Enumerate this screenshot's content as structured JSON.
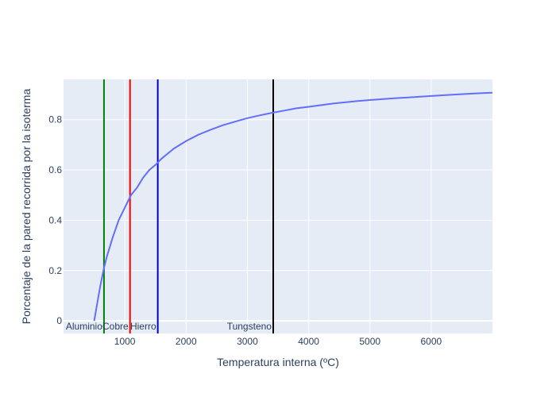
{
  "chart_data": {
    "type": "line",
    "title": "",
    "xlabel": "Temperatura interna (ºC)",
    "ylabel": "Porcentaje de la pared recorrida por la isoterma",
    "xlim": [
      0,
      7000
    ],
    "ylim": [
      -0.05,
      0.96
    ],
    "xticks": [
      1000,
      2000,
      3000,
      4000,
      5000,
      6000
    ],
    "yticks": [
      0,
      0.2,
      0.4,
      0.6,
      0.8
    ],
    "grid": true,
    "series": [
      {
        "color": "#636efa",
        "x": [
          500,
          550,
          600,
          660,
          700,
          800,
          900,
          1000,
          1100,
          1200,
          1300,
          1400,
          1500,
          1600,
          1700,
          1800,
          2000,
          2200,
          2400,
          2600,
          2800,
          3000,
          3200,
          3400,
          3600,
          3800,
          4000,
          4400,
          4800,
          5000,
          5400,
          5800,
          6000,
          6400,
          6800,
          7000
        ],
        "y": [
          0.0,
          0.07,
          0.14,
          0.21,
          0.25,
          0.33,
          0.4,
          0.45,
          0.5,
          0.53,
          0.57,
          0.6,
          0.62,
          0.645,
          0.665,
          0.685,
          0.715,
          0.74,
          0.76,
          0.778,
          0.792,
          0.806,
          0.817,
          0.827,
          0.836,
          0.845,
          0.851,
          0.864,
          0.874,
          0.878,
          0.885,
          0.891,
          0.894,
          0.9,
          0.905,
          0.907
        ]
      }
    ],
    "vlines": [
      {
        "x": 660,
        "color": "#008000",
        "label": "Aluminio"
      },
      {
        "x": 1085,
        "color": "#ff0000",
        "label": "Cobre"
      },
      {
        "x": 1538,
        "color": "#0000cd",
        "label": "Hierro"
      },
      {
        "x": 3422,
        "color": "#000000",
        "label": "Tungsteno"
      }
    ]
  }
}
